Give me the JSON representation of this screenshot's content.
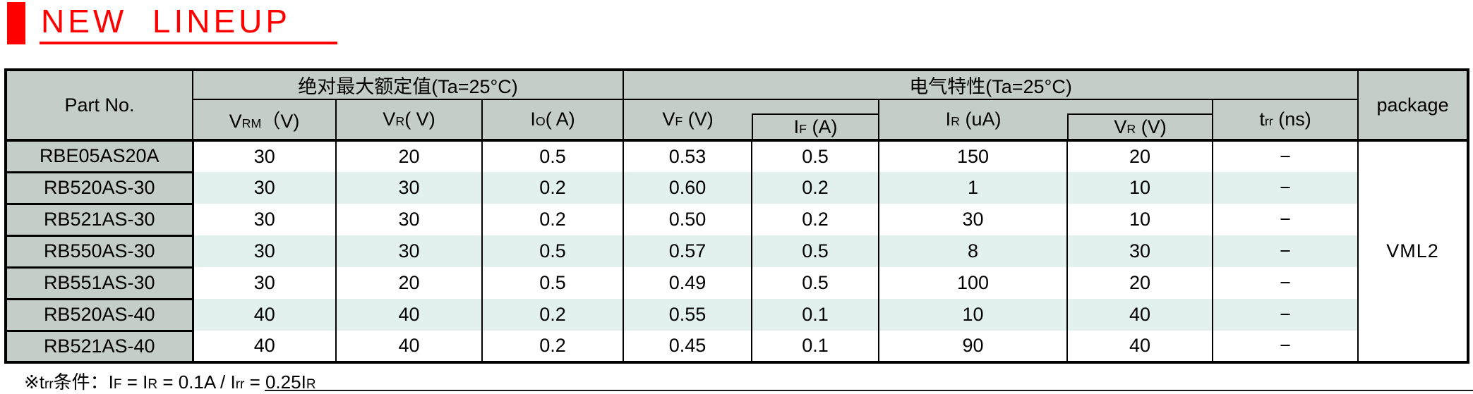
{
  "title": {
    "text": "NEW  LINEUP"
  },
  "colors": {
    "accent": "#ff0000",
    "header_bg": "#c5cdc9",
    "row_alt_bg": "#e3f1ee",
    "border": "#000000"
  },
  "table": {
    "header": {
      "part_no": "Part No.",
      "abs_max_group": "绝对最大额定值(Ta=25°C)",
      "elec_group": "电气特性(Ta=25°C)",
      "package": "package",
      "columns": [
        {
          "base": "V",
          "sub": "RM",
          "unit": "（V)"
        },
        {
          "base": "V",
          "sub": "R",
          "unit": "( V)"
        },
        {
          "base": "I",
          "sub": "O",
          "unit": "( A)"
        },
        {
          "base": "V",
          "sub": "F",
          "unit": " (V)"
        },
        {
          "base": "I",
          "sub": "F",
          "unit": " (A)"
        },
        {
          "base": "I",
          "sub": "R",
          "unit": " (uA)"
        },
        {
          "base": "V",
          "sub": "R",
          "unit": " (V)"
        },
        {
          "base": "t",
          "sub": "rr",
          "unit": " (ns)"
        }
      ]
    },
    "rows": [
      {
        "part": "RBE05AS20A",
        "vrm": "30",
        "vr": "20",
        "io": "0.5",
        "vf": "0.53",
        "if": "0.5",
        "ir": "150",
        "vr2": "20",
        "trr": "−"
      },
      {
        "part": "RB520AS-30",
        "vrm": "30",
        "vr": "30",
        "io": "0.2",
        "vf": "0.60",
        "if": "0.2",
        "ir": "1",
        "vr2": "10",
        "trr": "−"
      },
      {
        "part": "RB521AS-30",
        "vrm": "30",
        "vr": "30",
        "io": "0.2",
        "vf": "0.50",
        "if": "0.2",
        "ir": "30",
        "vr2": "10",
        "trr": "−"
      },
      {
        "part": "RB550AS-30",
        "vrm": "30",
        "vr": "30",
        "io": "0.5",
        "vf": "0.57",
        "if": "0.5",
        "ir": "8",
        "vr2": "30",
        "trr": "−"
      },
      {
        "part": "RB551AS-30",
        "vrm": "30",
        "vr": "20",
        "io": "0.5",
        "vf": "0.49",
        "if": "0.5",
        "ir": "100",
        "vr2": "20",
        "trr": "−"
      },
      {
        "part": "RB520AS-40",
        "vrm": "40",
        "vr": "40",
        "io": "0.2",
        "vf": "0.55",
        "if": "0.1",
        "ir": "10",
        "vr2": "40",
        "trr": "−"
      },
      {
        "part": "RB521AS-40",
        "vrm": "40",
        "vr": "40",
        "io": "0.2",
        "vf": "0.45",
        "if": "0.1",
        "ir": "90",
        "vr2": "40",
        "trr": "−"
      }
    ],
    "package_value": "VML2"
  },
  "footnote": {
    "segments": [
      {
        "t": "※t"
      },
      {
        "s": "rr"
      },
      {
        "t": "条件：I"
      },
      {
        "s": "F"
      },
      {
        "t": " = I"
      },
      {
        "s": "R"
      },
      {
        "t": " = 0.1A / I"
      },
      {
        "s": "rr"
      },
      {
        "t": " = 0.25I"
      },
      {
        "s": "R"
      }
    ]
  }
}
